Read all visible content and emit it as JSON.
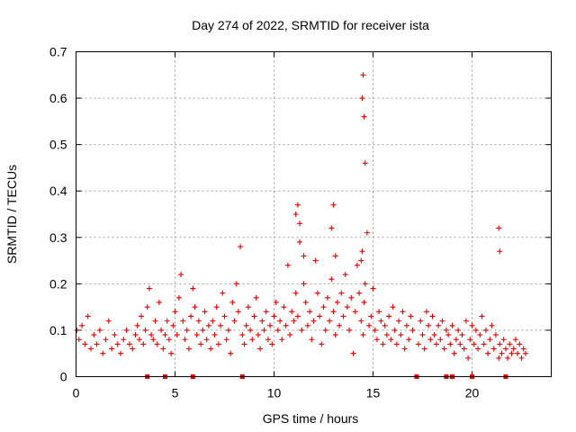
{
  "chart_data": {
    "type": "scatter",
    "title": "Day 274 of 2022, SRMTID for receiver ista",
    "xlabel": "GPS time / hours",
    "ylabel": "SRMTID / TECUs",
    "xlim": [
      0,
      24
    ],
    "ylim": [
      0,
      0.7
    ],
    "xticks": [
      0,
      5,
      10,
      15,
      20
    ],
    "xtick_labels": [
      "0",
      "5",
      "10",
      "15",
      "20"
    ],
    "yticks": [
      0,
      0.1,
      0.2,
      0.3,
      0.4,
      0.5,
      0.6,
      0.7
    ],
    "ytick_labels": [
      "0",
      "0.1",
      "0.2",
      "0.3",
      "0.4",
      "0.5",
      "0.6",
      "0.7"
    ],
    "grid": true,
    "marker": "+",
    "series": [
      {
        "name": "SRMTID",
        "color": "#e00000",
        "x": [
          0.05,
          0.15,
          0.3,
          0.45,
          0.6,
          0.75,
          0.9,
          1.05,
          1.2,
          1.35,
          1.5,
          1.65,
          1.8,
          1.95,
          2.1,
          2.25,
          2.4,
          2.55,
          2.7,
          2.85,
          3.0,
          3.1,
          3.2,
          3.3,
          3.4,
          3.5,
          3.6,
          3.7,
          3.8,
          3.9,
          4.0,
          4.1,
          4.2,
          4.3,
          4.4,
          4.5,
          4.6,
          4.7,
          4.8,
          4.9,
          5.0,
          5.1,
          5.2,
          5.3,
          5.4,
          5.5,
          5.6,
          5.7,
          5.8,
          5.9,
          6.0,
          6.1,
          6.2,
          6.3,
          6.4,
          6.5,
          6.6,
          6.7,
          6.8,
          6.9,
          7.0,
          7.1,
          7.2,
          7.3,
          7.4,
          7.5,
          7.6,
          7.7,
          7.8,
          7.9,
          8.0,
          8.1,
          8.2,
          8.3,
          8.4,
          8.5,
          8.6,
          8.7,
          8.8,
          8.9,
          9.0,
          9.1,
          9.2,
          9.3,
          9.4,
          9.5,
          9.6,
          9.7,
          9.8,
          9.9,
          10.0,
          10.1,
          10.2,
          10.3,
          10.4,
          10.5,
          10.6,
          10.7,
          10.8,
          10.9,
          11.0,
          11.1,
          11.2,
          11.3,
          11.4,
          11.5,
          11.6,
          11.7,
          11.8,
          11.9,
          12.0,
          12.1,
          12.2,
          12.3,
          12.4,
          12.5,
          12.6,
          12.7,
          12.8,
          12.9,
          13.0,
          13.1,
          13.2,
          13.3,
          13.4,
          13.5,
          13.6,
          13.7,
          13.8,
          13.9,
          14.0,
          14.1,
          14.2,
          14.3,
          14.4,
          14.45,
          14.5,
          14.55,
          14.6,
          14.7,
          14.8,
          14.9,
          15.0,
          15.1,
          15.2,
          15.3,
          15.4,
          15.5,
          15.6,
          15.7,
          15.8,
          15.9,
          16.0,
          16.1,
          16.2,
          16.3,
          16.4,
          16.5,
          16.6,
          16.7,
          16.8,
          16.9,
          17.0,
          17.3,
          17.4,
          17.5,
          17.6,
          17.7,
          17.8,
          17.9,
          18.0,
          18.1,
          18.2,
          18.3,
          18.4,
          18.5,
          18.6,
          18.7,
          18.8,
          18.9,
          19.0,
          19.1,
          19.2,
          19.3,
          19.4,
          19.5,
          19.6,
          19.7,
          19.8,
          19.9,
          20.0,
          20.1,
          20.2,
          20.3,
          20.4,
          20.5,
          20.6,
          20.7,
          20.8,
          20.9,
          21.0,
          21.1,
          21.2,
          21.35,
          21.4,
          21.5,
          21.6,
          21.7,
          21.8,
          21.9,
          22.0,
          22.1,
          22.2,
          22.3,
          22.4,
          22.5,
          22.6,
          22.7
        ],
        "y": [
          0.1,
          0.08,
          0.11,
          0.07,
          0.13,
          0.06,
          0.09,
          0.07,
          0.1,
          0.05,
          0.08,
          0.12,
          0.06,
          0.09,
          0.07,
          0.05,
          0.08,
          0.1,
          0.07,
          0.06,
          0.09,
          0.11,
          0.08,
          0.13,
          0.07,
          0.1,
          0.15,
          0.19,
          0.09,
          0.08,
          0.12,
          0.07,
          0.16,
          0.1,
          0.06,
          0.09,
          0.12,
          0.08,
          0.05,
          0.11,
          0.14,
          0.09,
          0.17,
          0.22,
          0.12,
          0.08,
          0.1,
          0.06,
          0.13,
          0.19,
          0.15,
          0.09,
          0.12,
          0.07,
          0.1,
          0.14,
          0.08,
          0.11,
          0.06,
          0.12,
          0.09,
          0.15,
          0.07,
          0.11,
          0.18,
          0.13,
          0.08,
          0.1,
          0.05,
          0.16,
          0.12,
          0.2,
          0.14,
          0.28,
          0.09,
          0.07,
          0.11,
          0.15,
          0.1,
          0.08,
          0.13,
          0.17,
          0.09,
          0.06,
          0.12,
          0.1,
          0.14,
          0.08,
          0.11,
          0.07,
          0.13,
          0.16,
          0.1,
          0.12,
          0.08,
          0.15,
          0.11,
          0.24,
          0.09,
          0.14,
          0.12,
          0.18,
          0.13,
          0.29,
          0.1,
          0.2,
          0.16,
          0.11,
          0.14,
          0.08,
          0.12,
          0.25,
          0.18,
          0.13,
          0.07,
          0.15,
          0.1,
          0.17,
          0.12,
          0.21,
          0.14,
          0.09,
          0.16,
          0.11,
          0.18,
          0.13,
          0.22,
          0.15,
          0.1,
          0.17,
          0.05,
          0.14,
          0.24,
          0.18,
          0.12,
          0.27,
          0.09,
          0.16,
          0.2,
          0.31,
          0.11,
          0.13,
          0.19,
          0.1,
          0.08,
          0.14,
          0.12,
          0.07,
          0.11,
          0.09,
          0.13,
          0.08,
          0.15,
          0.1,
          0.07,
          0.12,
          0.09,
          0.14,
          0.06,
          0.11,
          0.08,
          0.13,
          0.1,
          0.07,
          0.12,
          0.09,
          0.06,
          0.14,
          0.11,
          0.08,
          0.13,
          0.09,
          0.07,
          0.11,
          0.08,
          0.12,
          0.06,
          0.1,
          0.09,
          0.07,
          0.11,
          0.05,
          0.08,
          0.1,
          0.07,
          0.09,
          0.06,
          0.12,
          0.04,
          0.08,
          0.11,
          0.07,
          0.1,
          0.06,
          0.09,
          0.13,
          0.07,
          0.1,
          0.05,
          0.08,
          0.11,
          0.06,
          0.09,
          0.04,
          0.07,
          0.05,
          0.08,
          0.06,
          0.04,
          0.07,
          0.05,
          0.06,
          0.08,
          0.05,
          0.07,
          0.04,
          0.06,
          0.05
        ],
        "highlight_x": [
          11.1,
          11.2,
          11.3,
          11.5,
          12.9,
          13.0,
          13.1,
          14.4,
          14.45,
          14.5,
          14.55,
          14.6,
          21.35,
          21.4
        ],
        "highlight_y": [
          0.35,
          0.37,
          0.33,
          0.26,
          0.32,
          0.37,
          0.26,
          0.25,
          0.6,
          0.65,
          0.56,
          0.46,
          0.32,
          0.27
        ]
      }
    ],
    "gap_markers_x": [
      3.6,
      4.5,
      5.9,
      8.4,
      17.2,
      18.7,
      19.0,
      20.0,
      21.7
    ]
  }
}
